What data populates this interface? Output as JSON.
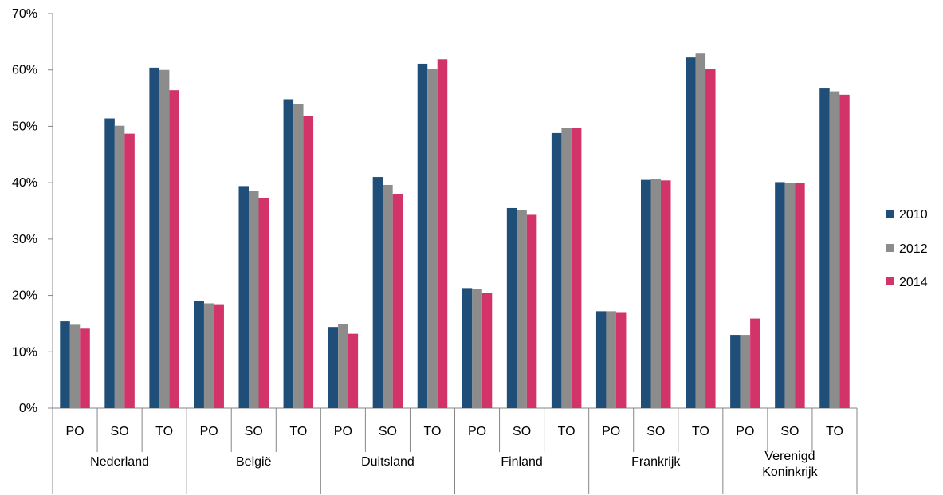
{
  "chart_data": {
    "type": "bar",
    "groups": [
      "Nederland",
      "België",
      "Duitsland",
      "Finland",
      "Frankrijk",
      "Verenigd Koninkrijk"
    ],
    "subcategories": [
      "PO",
      "SO",
      "TO"
    ],
    "y_ticks": [
      "0%",
      "10%",
      "20%",
      "30%",
      "40%",
      "50%",
      "60%",
      "70%"
    ],
    "ylim": [
      0,
      70
    ],
    "y_unit": "%",
    "legend_position": "right",
    "grid": false,
    "series": [
      {
        "name": "2010",
        "color": "#1F4E79",
        "values": [
          15.4,
          51.4,
          60.4,
          19.0,
          39.4,
          54.8,
          14.4,
          41.0,
          61.1,
          21.3,
          35.5,
          48.8,
          17.2,
          40.5,
          62.2,
          13.0,
          40.1,
          56.7
        ]
      },
      {
        "name": "2012",
        "color": "#8C8C8C",
        "values": [
          14.8,
          50.1,
          60.0,
          18.6,
          38.5,
          54.0,
          14.9,
          39.6,
          60.1,
          21.1,
          35.1,
          49.7,
          17.2,
          40.6,
          62.9,
          13.0,
          39.9,
          56.2
        ]
      },
      {
        "name": "2014",
        "color": "#D23369",
        "values": [
          14.1,
          48.7,
          56.4,
          18.3,
          37.3,
          51.8,
          13.2,
          38.0,
          61.9,
          20.4,
          34.3,
          49.7,
          16.9,
          40.4,
          60.1,
          15.9,
          39.9,
          55.6
        ]
      }
    ]
  }
}
